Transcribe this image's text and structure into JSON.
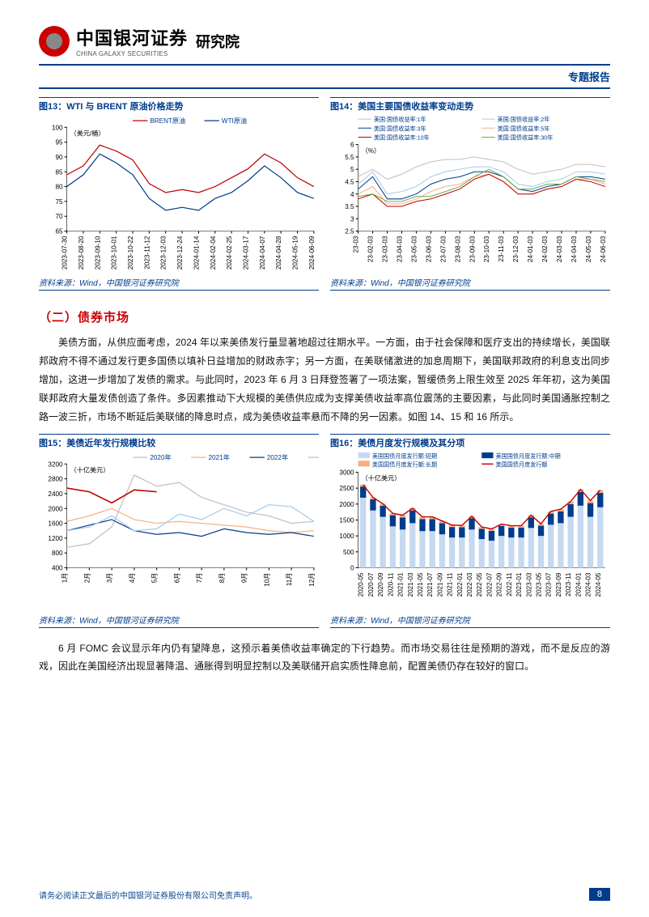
{
  "header": {
    "company_cn": "中国银河证券",
    "company_en": "CHINA GALAXY SECURITIES",
    "institute": "研究院",
    "report_type": "专题报告"
  },
  "section_title": "（二）债券市场",
  "para1": "美债方面，从供应面考虑，2024 年以来美债发行量显著地超过往期水平。一方面，由于社会保障和医疗支出的持续增长，美国联邦政府不得不通过发行更多国债以填补日益增加的财政赤字；另一方面，在美联储激进的加息周期下，美国联邦政府的利息支出同步增加，这进一步增加了发债的需求。与此同时，2023 年 6 月 3 日拜登签署了一项法案，暂缓债务上限生效至 2025 年年初，这为美国联邦政府大量发债创造了条件。多因素推动下大规模的美债供应成为支撑美债收益率高位震荡的主要因素，与此同时美国通胀控制之路一波三折，市场不断延后美联储的降息时点，成为美债收益率悬而不降的另一因素。如图 14、15 和 16 所示。",
  "para2": "6 月 FOMC 会议显示年内仍有望降息，这预示着美债收益率确定的下行趋势。而市场交易往往是预期的游戏，而不是反应的游戏，因此在美国经济出现显著降温、通胀得到明显控制以及美联储开启实质性降息前，配置美债仍存在较好的窗口。",
  "disclaimer": "请务必阅读正文最后的中国银河证券股份有限公司免责声明。",
  "page_num": "8",
  "source": "资料来源：Wind，中国银河证券研究院",
  "fig13": {
    "title": "图13：WTI 与 BRENT 原油价格走势",
    "ylabel": "（美元/桶）",
    "ylim": [
      65,
      100
    ],
    "yticks": [
      65,
      70,
      75,
      80,
      85,
      90,
      95,
      100
    ],
    "xlabels": [
      "2023-07-30",
      "2023-08-20",
      "2023-09-10",
      "2023-10-01",
      "2023-10-22",
      "2023-11-12",
      "2023-12-03",
      "2023-12-24",
      "2024-01-14",
      "2024-02-04",
      "2024-02-25",
      "2024-03-17",
      "2024-04-07",
      "2024-04-28",
      "2024-05-19",
      "2024-06-09"
    ],
    "series": [
      {
        "name": "BRENT原油",
        "color": "#c00000",
        "width": 1.2,
        "x": [
          0,
          1,
          2,
          3,
          4,
          5,
          6,
          7,
          8,
          9,
          10,
          11,
          12,
          13,
          14,
          15
        ],
        "y": [
          84,
          87,
          94,
          92,
          89,
          81,
          78,
          79,
          78,
          80,
          83,
          86,
          91,
          88,
          83,
          80
        ]
      },
      {
        "name": "WTI原油",
        "color": "#003c8c",
        "width": 1.2,
        "x": [
          0,
          1,
          2,
          3,
          4,
          5,
          6,
          7,
          8,
          9,
          10,
          11,
          12,
          13,
          14,
          15
        ],
        "y": [
          80,
          84,
          91,
          88,
          84,
          76,
          72,
          73,
          72,
          76,
          78,
          82,
          87,
          83,
          78,
          76
        ]
      }
    ],
    "axis_fontsize": 8,
    "label_fontsize": 8,
    "legend_fontsize": 8,
    "bg": "#ffffff",
    "grid": false
  },
  "fig14": {
    "title": "图14：美国主要国债收益率变动走势",
    "ylabel": "（%）",
    "ylim": [
      2.5,
      6.0
    ],
    "yticks": [
      2.5,
      3.0,
      3.5,
      4.0,
      4.5,
      5.0,
      5.5,
      6.0
    ],
    "xlabels": [
      "23-03",
      "23-02-03",
      "23-03-03",
      "23-04-03",
      "23-05-03",
      "23-06-03",
      "23-07-03",
      "23-08-03",
      "23-09-03",
      "23-10-03",
      "23-11-03",
      "23-12-03",
      "24-01-03",
      "24-02-03",
      "24-03-03",
      "24-04-03",
      "24-05-03",
      "24-06-03"
    ],
    "series": [
      {
        "name": "美国:国债收益率:1年",
        "color": "#bfbfbf",
        "width": 1,
        "x": [
          0,
          1,
          2,
          3,
          4,
          5,
          6,
          7,
          8,
          9,
          10,
          11,
          12,
          13,
          14,
          15,
          16,
          17
        ],
        "y": [
          4.7,
          5.0,
          4.6,
          4.8,
          5.1,
          5.3,
          5.4,
          5.4,
          5.5,
          5.4,
          5.3,
          5.0,
          4.8,
          4.9,
          5.0,
          5.2,
          5.2,
          5.1
        ]
      },
      {
        "name": "美国:国债收益率:2年",
        "color": "#a6c9ec",
        "width": 1,
        "x": [
          0,
          1,
          2,
          3,
          4,
          5,
          6,
          7,
          8,
          9,
          10,
          11,
          12,
          13,
          14,
          15,
          16,
          17
        ],
        "y": [
          4.4,
          4.9,
          4.0,
          4.1,
          4.3,
          4.7,
          4.9,
          5.0,
          5.1,
          5.1,
          4.9,
          4.4,
          4.3,
          4.5,
          4.6,
          4.9,
          4.9,
          4.8
        ]
      },
      {
        "name": "美国:国债收益率:3年",
        "color": "#003c8c",
        "width": 1,
        "x": [
          0,
          1,
          2,
          3,
          4,
          5,
          6,
          7,
          8,
          9,
          10,
          11,
          12,
          13,
          14,
          15,
          16,
          17
        ],
        "y": [
          4.2,
          4.7,
          3.8,
          3.8,
          4.0,
          4.4,
          4.6,
          4.7,
          4.9,
          4.9,
          4.7,
          4.2,
          4.1,
          4.3,
          4.4,
          4.7,
          4.7,
          4.6
        ]
      },
      {
        "name": "美国:国债收益率:5年",
        "color": "#f4b083",
        "width": 1,
        "x": [
          0,
          1,
          2,
          3,
          4,
          5,
          6,
          7,
          8,
          9,
          10,
          11,
          12,
          13,
          14,
          15,
          16,
          17
        ],
        "y": [
          4.0,
          4.3,
          3.6,
          3.6,
          3.8,
          4.1,
          4.3,
          4.4,
          4.7,
          4.8,
          4.5,
          4.0,
          4.0,
          4.2,
          4.3,
          4.6,
          4.6,
          4.4
        ]
      },
      {
        "name": "美国:国债收益率:10年",
        "color": "#c00000",
        "width": 1,
        "x": [
          0,
          1,
          2,
          3,
          4,
          5,
          6,
          7,
          8,
          9,
          10,
          11,
          12,
          13,
          14,
          15,
          16,
          17
        ],
        "y": [
          3.8,
          4.0,
          3.5,
          3.5,
          3.7,
          3.8,
          4.0,
          4.2,
          4.6,
          4.8,
          4.5,
          4.0,
          4.0,
          4.2,
          4.3,
          4.6,
          4.5,
          4.3
        ]
      },
      {
        "name": "美国:国债收益率:30年",
        "color": "#70ad47",
        "width": 1,
        "x": [
          0,
          1,
          2,
          3,
          4,
          5,
          6,
          7,
          8,
          9,
          10,
          11,
          12,
          13,
          14,
          15,
          16,
          17
        ],
        "y": [
          3.9,
          4.0,
          3.7,
          3.7,
          3.9,
          3.9,
          4.1,
          4.3,
          4.7,
          5.0,
          4.7,
          4.2,
          4.2,
          4.4,
          4.4,
          4.7,
          4.6,
          4.5
        ]
      }
    ],
    "axis_fontsize": 8,
    "label_fontsize": 8,
    "legend_fontsize": 7,
    "bg": "#ffffff",
    "grid": false
  },
  "fig15": {
    "title": "图15：美债近年发行规模比较",
    "ylabel": "（十亿美元）",
    "ylim": [
      400,
      3200
    ],
    "yticks": [
      400,
      800,
      1200,
      1600,
      2000,
      2400,
      2800,
      3200
    ],
    "xlabels": [
      "1月",
      "2月",
      "3月",
      "4月",
      "5月",
      "6月",
      "7月",
      "8月",
      "9月",
      "10月",
      "11月",
      "12月"
    ],
    "series": [
      {
        "name": "2020年",
        "color": "#bfbfbf",
        "width": 1.2,
        "x": [
          0,
          1,
          2,
          3,
          4,
          5,
          6,
          7,
          8,
          9,
          10,
          11
        ],
        "y": [
          950,
          1050,
          1500,
          2900,
          2600,
          2700,
          2300,
          2100,
          1900,
          1800,
          1600,
          1650
        ]
      },
      {
        "name": "2021年",
        "color": "#f4b083",
        "width": 1.2,
        "x": [
          0,
          1,
          2,
          3,
          4,
          5,
          6,
          7,
          8,
          9,
          10,
          11
        ],
        "y": [
          1650,
          1800,
          2000,
          1700,
          1600,
          1650,
          1600,
          1550,
          1500,
          1400,
          1350,
          1400
        ]
      },
      {
        "name": "2022年",
        "color": "#003c8c",
        "width": 1.2,
        "x": [
          0,
          1,
          2,
          3,
          4,
          5,
          6,
          7,
          8,
          9,
          10,
          11
        ],
        "y": [
          1400,
          1550,
          1700,
          1400,
          1300,
          1350,
          1250,
          1450,
          1350,
          1300,
          1350,
          1250
        ]
      },
      {
        "name": "2023年",
        "color": "#a6c9ec",
        "width": 1.2,
        "x": [
          0,
          1,
          2,
          3,
          4,
          5,
          6,
          7,
          8,
          9,
          10,
          11
        ],
        "y": [
          1400,
          1500,
          1800,
          1400,
          1450,
          1850,
          1700,
          2000,
          1800,
          2100,
          2050,
          1650
        ]
      },
      {
        "name": "2024年",
        "color": "#c00000",
        "width": 1.6,
        "x": [
          0,
          1,
          2,
          3,
          4
        ],
        "y": [
          2550,
          2450,
          2150,
          2500,
          2450
        ]
      }
    ],
    "axis_fontsize": 8,
    "label_fontsize": 8,
    "legend_fontsize": 8,
    "bg": "#ffffff",
    "grid": false
  },
  "fig16": {
    "title": "图16：美债月度发行规模及其分项",
    "ylabel": "（十亿美元）",
    "ylim": [
      0,
      3000
    ],
    "yticks": [
      0,
      500,
      1000,
      1500,
      2000,
      2500,
      3000
    ],
    "xlabels": [
      "2020-05",
      "2020-07",
      "2020-09",
      "2020-11",
      "2021-01",
      "2021-03",
      "2021-05",
      "2021-07",
      "2021-09",
      "2021-11",
      "2022-01",
      "2022-03",
      "2022-05",
      "2022-07",
      "2022-09",
      "2022-11",
      "2023-01",
      "2023-03",
      "2023-05",
      "2023-07",
      "2023-09",
      "2023-11",
      "2024-01",
      "2024-03",
      "2024-05"
    ],
    "stack": [
      {
        "name": "美国国债月度发行额:短期",
        "color": "#c5d9f1",
        "y": [
          2200,
          1800,
          1600,
          1300,
          1200,
          1400,
          1150,
          1150,
          1050,
          950,
          950,
          1200,
          900,
          850,
          1000,
          950,
          950,
          1250,
          1000,
          1350,
          1400,
          1600,
          1950,
          1600,
          1900
        ]
      },
      {
        "name": "美国国债月度发行额:中期",
        "color": "#003c8c",
        "y": [
          350,
          350,
          350,
          350,
          380,
          400,
          380,
          380,
          350,
          330,
          320,
          350,
          320,
          310,
          310,
          310,
          310,
          330,
          320,
          350,
          370,
          400,
          430,
          430,
          450
        ]
      },
      {
        "name": "美国国债月度发行额:长期",
        "color": "#f4b083",
        "y": [
          60,
          60,
          60,
          60,
          70,
          70,
          70,
          70,
          70,
          60,
          60,
          70,
          60,
          60,
          60,
          60,
          60,
          70,
          60,
          70,
          70,
          80,
          80,
          80,
          90
        ]
      }
    ],
    "line": {
      "name": "美国国债月度发行额",
      "color": "#c00000",
      "width": 1.4,
      "y": [
        2610,
        2210,
        2010,
        1710,
        1650,
        1870,
        1600,
        1600,
        1470,
        1340,
        1330,
        1620,
        1280,
        1220,
        1370,
        1320,
        1320,
        1650,
        1380,
        1770,
        1840,
        2080,
        2460,
        2110,
        2440
      ]
    },
    "axis_fontsize": 8,
    "label_fontsize": 8,
    "legend_fontsize": 7,
    "bg": "#ffffff",
    "grid": false
  }
}
